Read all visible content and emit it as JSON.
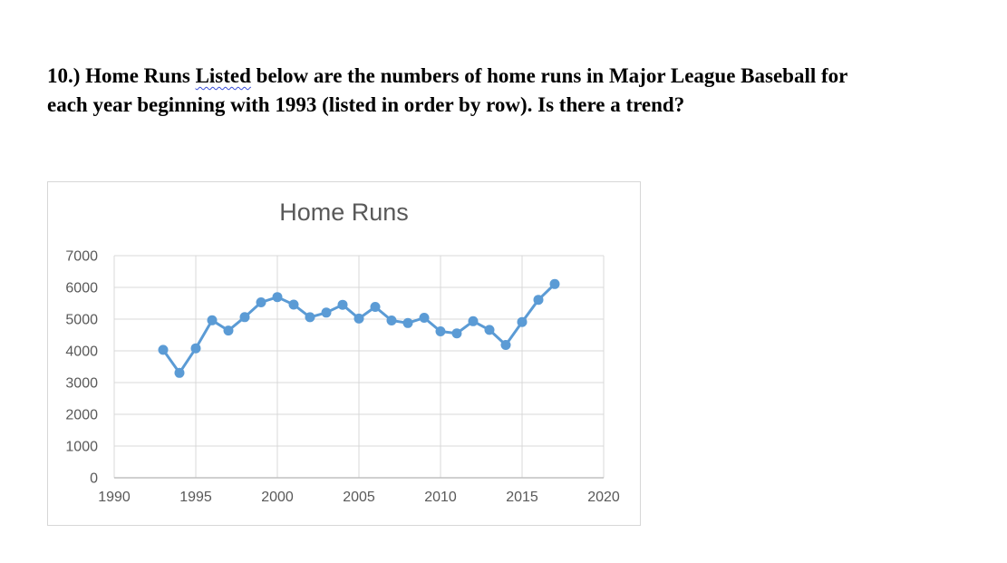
{
  "colors": {
    "accent_blue": "#5b9bd5",
    "grid": "#d9d9d9",
    "axis": "#c0c0c0",
    "chart_text": "#595959",
    "chart_border": "#d7d7d7",
    "squiggle_blue": "#3b4fd8",
    "question_text": "#000000",
    "background": "#ffffff"
  },
  "question": {
    "prefix": "10.) Home Runs",
    "misspelled_word": "Listed",
    "rest_line1": "below are the numbers of home runs in Major League Baseball for",
    "line2": "each year beginning with 1993 (listed in order by row). Is there a trend?"
  },
  "chart_data": {
    "type": "line",
    "title": "Home Runs",
    "xlabel": "",
    "ylabel": "",
    "series_name": "Home Runs",
    "x": [
      1993,
      1994,
      1995,
      1996,
      1997,
      1998,
      1999,
      2000,
      2001,
      2002,
      2003,
      2004,
      2005,
      2006,
      2007,
      2008,
      2009,
      2010,
      2011,
      2012,
      2013,
      2014,
      2015,
      2016,
      2017
    ],
    "values": [
      4030,
      3306,
      4081,
      4962,
      4640,
      5064,
      5528,
      5693,
      5458,
      5059,
      5207,
      5451,
      5017,
      5386,
      4957,
      4878,
      5042,
      4613,
      4552,
      4934,
      4661,
      4186,
      4909,
      5610,
      6105
    ],
    "xlim": [
      1990,
      2020
    ],
    "ylim": [
      0,
      7000
    ],
    "x_ticks": [
      1990,
      1995,
      2000,
      2005,
      2010,
      2015,
      2020
    ],
    "y_ticks": [
      0,
      1000,
      2000,
      3000,
      4000,
      5000,
      6000,
      7000
    ],
    "grid": true,
    "legend": false,
    "marker": "circle"
  }
}
